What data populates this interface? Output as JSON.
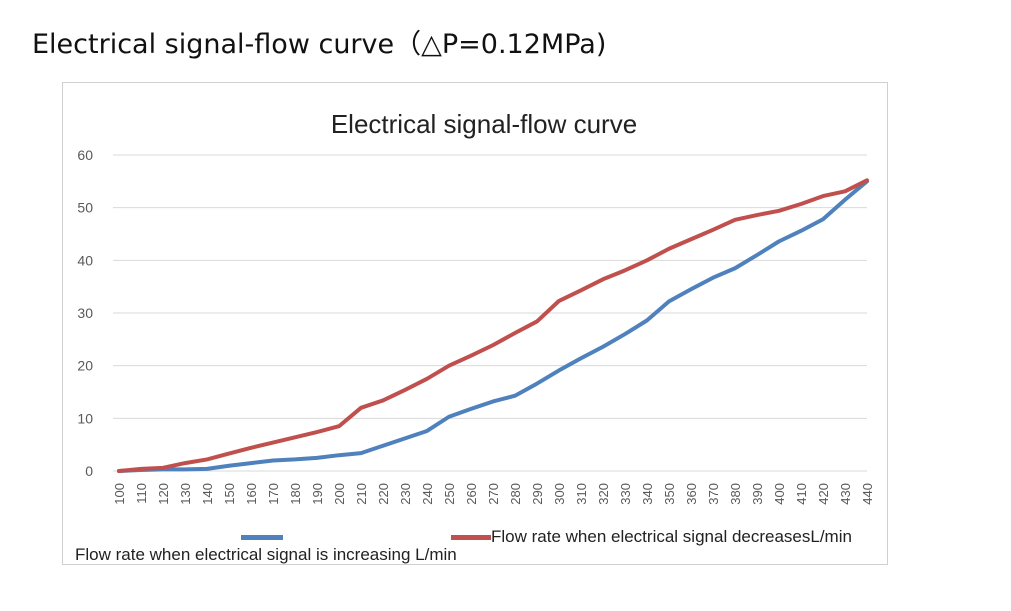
{
  "page": {
    "title": "Electrical signal-flow curve（△P=0.12MPa)"
  },
  "chart_data": {
    "type": "line",
    "title": "Electrical signal-flow curve",
    "xlabel": "",
    "ylabel": "",
    "ylim": [
      0,
      60
    ],
    "yticks": [
      0,
      10,
      20,
      30,
      40,
      50,
      60
    ],
    "grid": true,
    "legend_position": "bottom",
    "categories": [
      "100",
      "110",
      "120",
      "130",
      "140",
      "150",
      "160",
      "170",
      "180",
      "190",
      "200",
      "210",
      "220",
      "230",
      "240",
      "250",
      "260",
      "270",
      "280",
      "290",
      "300",
      "310",
      "320",
      "330",
      "340",
      "350",
      "360",
      "370",
      "380",
      "390",
      "400",
      "410",
      "420",
      "430",
      "440"
    ],
    "series": [
      {
        "name": "Flow rate when electrical signal is increasing L/min",
        "color": "#4f81bd",
        "values": [
          0,
          0.2,
          0.3,
          0.3,
          0.4,
          1.0,
          1.5,
          2.0,
          2.2,
          2.5,
          3.0,
          3.4,
          4.8,
          6.2,
          7.6,
          10.3,
          11.8,
          13.2,
          14.3,
          16.6,
          19.1,
          21.4,
          23.6,
          26.0,
          28.6,
          32.2,
          34.5,
          36.7,
          38.5,
          41.0,
          43.6,
          45.6,
          47.8,
          51.5,
          55.0
        ]
      },
      {
        "name": "Flow rate when electrical signal decreasesL/min",
        "color": "#c0504d",
        "values": [
          0,
          0.4,
          0.6,
          1.5,
          2.2,
          3.3,
          4.4,
          5.4,
          6.4,
          7.4,
          8.5,
          12.0,
          13.4,
          15.4,
          17.5,
          20.0,
          21.9,
          23.9,
          26.2,
          28.4,
          32.3,
          34.3,
          36.4,
          38.1,
          40.0,
          42.2,
          44.0,
          45.8,
          47.7,
          48.6,
          49.4,
          50.7,
          52.2,
          53.1,
          55.2
        ]
      }
    ]
  }
}
